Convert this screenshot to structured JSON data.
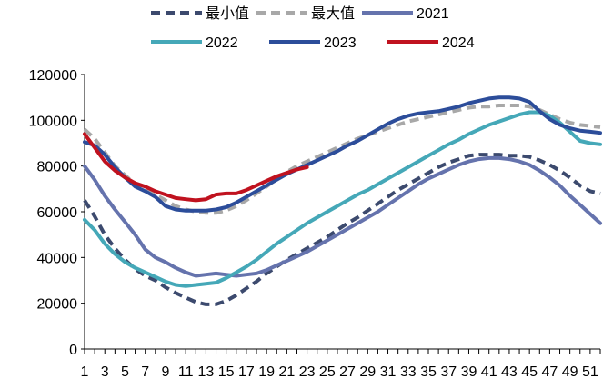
{
  "chart_data": {
    "type": "line",
    "title": "",
    "xlabel": "",
    "ylabel": "",
    "ylim": [
      0,
      120000
    ],
    "xlim": [
      1,
      52
    ],
    "y_ticks": [
      0,
      20000,
      40000,
      60000,
      80000,
      100000,
      120000
    ],
    "y_tick_labels": [
      "0",
      "20000",
      "40000",
      "60000",
      "80000",
      "100000",
      "120000"
    ],
    "x_tick_labels": [
      "1",
      "3",
      "5",
      "7",
      "9",
      "11",
      "13",
      "15",
      "17",
      "19",
      "21",
      "23",
      "25",
      "27",
      "29",
      "31",
      "33",
      "35",
      "37",
      "39",
      "41",
      "43",
      "45",
      "47",
      "49",
      "51"
    ],
    "grid": false,
    "legend_position": "top",
    "series": [
      {
        "name": "最小值",
        "color": "#3c4a6e",
        "dash": "dash",
        "x": [
          1,
          2,
          3,
          4,
          5,
          6,
          7,
          8,
          9,
          10,
          11,
          12,
          13,
          14,
          15,
          16,
          17,
          18,
          19,
          20,
          21,
          22,
          23,
          24,
          25,
          26,
          27,
          28,
          29,
          30,
          31,
          32,
          33,
          34,
          35,
          36,
          37,
          38,
          39,
          40,
          41,
          42,
          43,
          44,
          45,
          46,
          47,
          48,
          49,
          50,
          51,
          52
        ],
        "y": [
          65000,
          58000,
          50000,
          44000,
          39000,
          35000,
          32000,
          30000,
          27000,
          24500,
          22500,
          20500,
          19500,
          19500,
          21000,
          23500,
          26500,
          29500,
          33000,
          36000,
          39000,
          41500,
          44000,
          46500,
          49000,
          52000,
          55000,
          57500,
          60500,
          63500,
          66500,
          69500,
          72000,
          74500,
          77000,
          79500,
          81500,
          83000,
          84500,
          85000,
          85000,
          85000,
          84500,
          84500,
          84000,
          82500,
          80500,
          78000,
          75000,
          71500,
          69000,
          68000
        ]
      },
      {
        "name": "最大值",
        "color": "#a8a8a8",
        "dash": "dash",
        "x": [
          1,
          2,
          3,
          4,
          5,
          6,
          7,
          8,
          9,
          10,
          11,
          12,
          13,
          14,
          15,
          16,
          17,
          18,
          19,
          20,
          21,
          22,
          23,
          24,
          25,
          26,
          27,
          28,
          29,
          30,
          31,
          32,
          33,
          34,
          35,
          36,
          37,
          38,
          39,
          40,
          41,
          42,
          43,
          44,
          45,
          46,
          47,
          48,
          49,
          50,
          51,
          52
        ],
        "y": [
          96000,
          92000,
          86000,
          80000,
          76000,
          72000,
          69500,
          67500,
          65000,
          62500,
          61000,
          60000,
          59500,
          59500,
          60500,
          62500,
          65000,
          68000,
          71000,
          74500,
          77500,
          80000,
          82000,
          84000,
          86000,
          88000,
          90000,
          92000,
          93500,
          95000,
          96500,
          98000,
          99500,
          100500,
          101500,
          102500,
          103500,
          104500,
          105500,
          106000,
          106000,
          106500,
          106500,
          106500,
          106000,
          104500,
          102500,
          100500,
          99000,
          98000,
          97500,
          97000
        ]
      },
      {
        "name": "2021",
        "color": "#6573ad",
        "dash": "solid",
        "x": [
          1,
          2,
          3,
          4,
          5,
          6,
          7,
          8,
          9,
          10,
          11,
          12,
          13,
          14,
          15,
          16,
          17,
          18,
          19,
          20,
          21,
          22,
          23,
          24,
          25,
          26,
          27,
          28,
          29,
          30,
          31,
          32,
          33,
          34,
          35,
          36,
          37,
          38,
          39,
          40,
          41,
          42,
          43,
          44,
          45,
          46,
          47,
          48,
          49,
          50,
          51,
          52
        ],
        "y": [
          80000,
          74000,
          67000,
          61000,
          55500,
          50000,
          43500,
          40000,
          38000,
          35500,
          33500,
          32000,
          32500,
          33000,
          32500,
          32000,
          32500,
          33000,
          34500,
          36500,
          38500,
          40500,
          42500,
          45000,
          47500,
          50000,
          52500,
          55000,
          57500,
          60000,
          63000,
          66000,
          69000,
          72000,
          74500,
          76500,
          78500,
          80500,
          82000,
          83000,
          83500,
          83500,
          83000,
          82000,
          80500,
          78000,
          75000,
          71500,
          67000,
          63000,
          59000,
          55000
        ]
      },
      {
        "name": "2022",
        "color": "#45a8b8",
        "dash": "solid",
        "x": [
          1,
          2,
          3,
          4,
          5,
          6,
          7,
          8,
          9,
          10,
          11,
          12,
          13,
          14,
          15,
          16,
          17,
          18,
          19,
          20,
          21,
          22,
          23,
          24,
          25,
          26,
          27,
          28,
          29,
          30,
          31,
          32,
          33,
          34,
          35,
          36,
          37,
          38,
          39,
          40,
          41,
          42,
          43,
          44,
          45,
          46,
          47,
          48,
          49,
          50,
          51,
          52
        ],
        "y": [
          56500,
          52000,
          46000,
          41500,
          38000,
          35500,
          33500,
          31500,
          29500,
          28000,
          27500,
          28000,
          28500,
          29000,
          31000,
          33500,
          36000,
          39000,
          42500,
          46000,
          49000,
          52000,
          55000,
          57500,
          60000,
          62500,
          65000,
          67500,
          69500,
          72000,
          74500,
          77000,
          79500,
          82000,
          84500,
          87000,
          89500,
          91500,
          94000,
          96000,
          98000,
          99500,
          101000,
          102500,
          103500,
          103500,
          102000,
          99000,
          95000,
          91000,
          90000,
          89500
        ]
      },
      {
        "name": "2023",
        "color": "#2c4d9a",
        "dash": "solid",
        "x": [
          1,
          2,
          3,
          4,
          5,
          6,
          7,
          8,
          9,
          10,
          11,
          12,
          13,
          14,
          15,
          16,
          17,
          18,
          19,
          20,
          21,
          22,
          23,
          24,
          25,
          26,
          27,
          28,
          29,
          30,
          31,
          32,
          33,
          34,
          35,
          36,
          37,
          38,
          39,
          40,
          41,
          42,
          43,
          44,
          45,
          46,
          47,
          48,
          49,
          50,
          51,
          52
        ],
        "y": [
          90500,
          89000,
          85000,
          79500,
          75000,
          71000,
          69000,
          66500,
          62500,
          61000,
          60500,
          60500,
          60500,
          61000,
          62000,
          64000,
          66500,
          69000,
          71500,
          74000,
          76500,
          78500,
          80500,
          82500,
          84500,
          86500,
          89000,
          91000,
          93500,
          96000,
          98500,
          100500,
          102000,
          103000,
          103500,
          104000,
          105000,
          106000,
          107500,
          108500,
          109500,
          110000,
          110000,
          109500,
          108000,
          104000,
          100500,
          98000,
          96500,
          95500,
          95000,
          94500
        ]
      },
      {
        "name": "2024",
        "color": "#c0121f",
        "dash": "solid",
        "x": [
          1,
          2,
          3,
          4,
          5,
          6,
          7,
          8,
          9,
          10,
          11,
          12,
          13,
          14,
          15,
          16,
          17,
          18,
          19,
          20,
          21,
          22,
          23
        ],
        "y": [
          94000,
          88000,
          82000,
          78000,
          75000,
          72500,
          71000,
          69000,
          67500,
          66000,
          65500,
          65000,
          65500,
          67500,
          68000,
          68000,
          69500,
          71500,
          73500,
          75500,
          77000,
          78500,
          79500
        ]
      }
    ]
  }
}
